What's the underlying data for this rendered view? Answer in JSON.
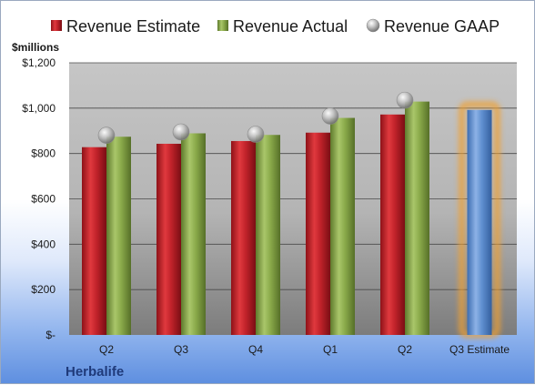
{
  "chart_data": {
    "type": "bar",
    "title": "",
    "brand": "Herbalife",
    "unit_label": "$millions",
    "categories": [
      "Q2",
      "Q3",
      "Q4",
      "Q1",
      "Q2",
      "Q3 Estimate"
    ],
    "series": [
      {
        "name": "Revenue Estimate",
        "kind": "bar",
        "color": "#c0222a",
        "values": [
          828,
          843,
          855,
          892,
          972,
          null
        ]
      },
      {
        "name": "Revenue Actual",
        "kind": "bar",
        "color": "#8aaa4a",
        "values": [
          874,
          889,
          882,
          957,
          1029,
          null
        ]
      },
      {
        "name": "Revenue GAAP",
        "kind": "marker",
        "color": "#a8a8a8",
        "values": [
          880,
          895,
          885,
          965,
          1035,
          null
        ]
      },
      {
        "name": "Q3 Estimate",
        "kind": "bar",
        "color": "#5f8fd0",
        "highlight": "#f0a030",
        "values": [
          null,
          null,
          null,
          null,
          null,
          992
        ]
      }
    ],
    "ylim": [
      0,
      1200
    ],
    "yticks": [
      0,
      200,
      400,
      600,
      800,
      1000,
      1200
    ],
    "ytick_labels": [
      "$-",
      "$200",
      "$400",
      "$600",
      "$800",
      "$1,000",
      "$1,200"
    ],
    "grid": true,
    "legend_position": "top"
  }
}
